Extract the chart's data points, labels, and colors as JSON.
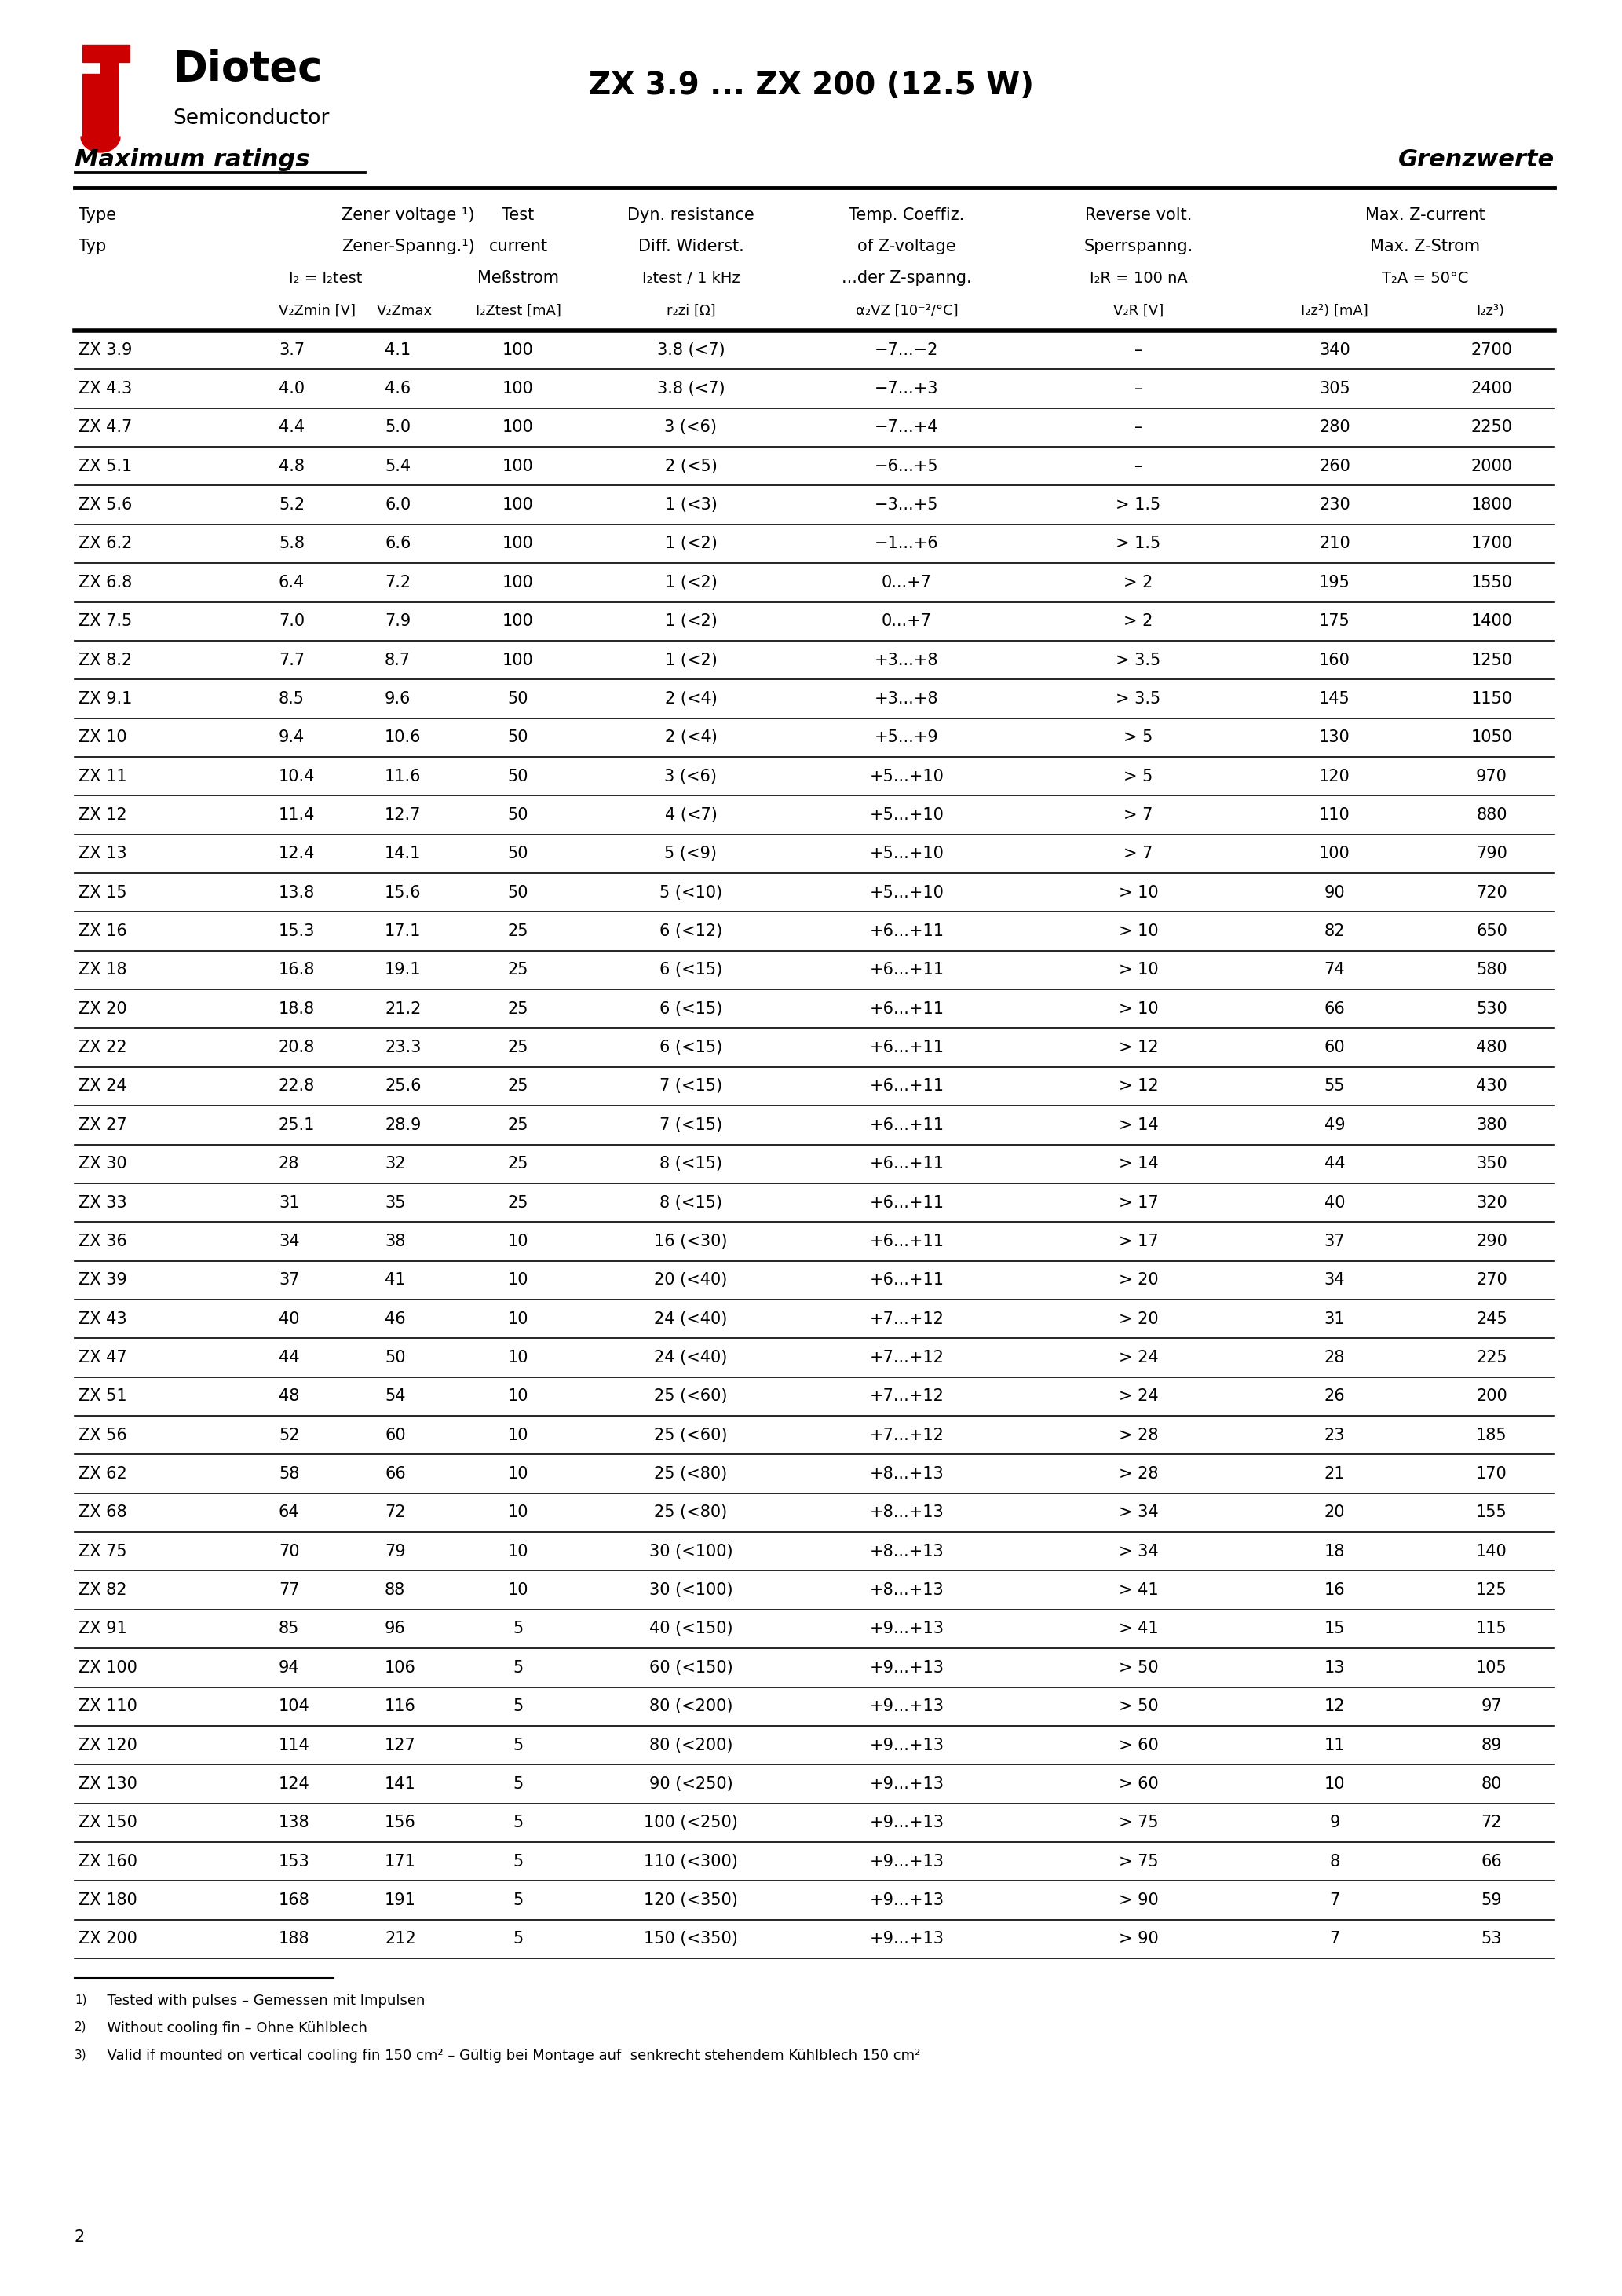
{
  "title": "ZX 3.9 ... ZX 200 (12.5 W)",
  "section_left": "Maximum ratings",
  "section_right": "Grenzwerte",
  "rows": [
    [
      "ZX 3.9",
      "3.7",
      "4.1",
      "100",
      "3.8 (<7)",
      "−7...−2",
      "–",
      "340",
      "2700"
    ],
    [
      "ZX 4.3",
      "4.0",
      "4.6",
      "100",
      "3.8 (<7)",
      "−7...+3",
      "–",
      "305",
      "2400"
    ],
    [
      "ZX 4.7",
      "4.4",
      "5.0",
      "100",
      "3 (<6)",
      "−7...+4",
      "–",
      "280",
      "2250"
    ],
    [
      "ZX 5.1",
      "4.8",
      "5.4",
      "100",
      "2 (<5)",
      "−6...+5",
      "–",
      "260",
      "2000"
    ],
    [
      "ZX 5.6",
      "5.2",
      "6.0",
      "100",
      "1 (<3)",
      "−3...+5",
      "> 1.5",
      "230",
      "1800"
    ],
    [
      "ZX 6.2",
      "5.8",
      "6.6",
      "100",
      "1 (<2)",
      "−1...+6",
      "> 1.5",
      "210",
      "1700"
    ],
    [
      "ZX 6.8",
      "6.4",
      "7.2",
      "100",
      "1 (<2)",
      "0...+7",
      "> 2",
      "195",
      "1550"
    ],
    [
      "ZX 7.5",
      "7.0",
      "7.9",
      "100",
      "1 (<2)",
      "0...+7",
      "> 2",
      "175",
      "1400"
    ],
    [
      "ZX 8.2",
      "7.7",
      "8.7",
      "100",
      "1 (<2)",
      "+3...+8",
      "> 3.5",
      "160",
      "1250"
    ],
    [
      "ZX 9.1",
      "8.5",
      "9.6",
      "50",
      "2 (<4)",
      "+3...+8",
      "> 3.5",
      "145",
      "1150"
    ],
    [
      "ZX 10",
      "9.4",
      "10.6",
      "50",
      "2 (<4)",
      "+5...+9",
      "> 5",
      "130",
      "1050"
    ],
    [
      "ZX 11",
      "10.4",
      "11.6",
      "50",
      "3 (<6)",
      "+5...+10",
      "> 5",
      "120",
      "970"
    ],
    [
      "ZX 12",
      "11.4",
      "12.7",
      "50",
      "4 (<7)",
      "+5...+10",
      "> 7",
      "110",
      "880"
    ],
    [
      "ZX 13",
      "12.4",
      "14.1",
      "50",
      "5 (<9)",
      "+5...+10",
      "> 7",
      "100",
      "790"
    ],
    [
      "ZX 15",
      "13.8",
      "15.6",
      "50",
      "5 (<10)",
      "+5...+10",
      "> 10",
      "90",
      "720"
    ],
    [
      "ZX 16",
      "15.3",
      "17.1",
      "25",
      "6 (<12)",
      "+6...+11",
      "> 10",
      "82",
      "650"
    ],
    [
      "ZX 18",
      "16.8",
      "19.1",
      "25",
      "6 (<15)",
      "+6...+11",
      "> 10",
      "74",
      "580"
    ],
    [
      "ZX 20",
      "18.8",
      "21.2",
      "25",
      "6 (<15)",
      "+6...+11",
      "> 10",
      "66",
      "530"
    ],
    [
      "ZX 22",
      "20.8",
      "23.3",
      "25",
      "6 (<15)",
      "+6...+11",
      "> 12",
      "60",
      "480"
    ],
    [
      "ZX 24",
      "22.8",
      "25.6",
      "25",
      "7 (<15)",
      "+6...+11",
      "> 12",
      "55",
      "430"
    ],
    [
      "ZX 27",
      "25.1",
      "28.9",
      "25",
      "7 (<15)",
      "+6...+11",
      "> 14",
      "49",
      "380"
    ],
    [
      "ZX 30",
      "28",
      "32",
      "25",
      "8 (<15)",
      "+6...+11",
      "> 14",
      "44",
      "350"
    ],
    [
      "ZX 33",
      "31",
      "35",
      "25",
      "8 (<15)",
      "+6...+11",
      "> 17",
      "40",
      "320"
    ],
    [
      "ZX 36",
      "34",
      "38",
      "10",
      "16 (<30)",
      "+6...+11",
      "> 17",
      "37",
      "290"
    ],
    [
      "ZX 39",
      "37",
      "41",
      "10",
      "20 (<40)",
      "+6...+11",
      "> 20",
      "34",
      "270"
    ],
    [
      "ZX 43",
      "40",
      "46",
      "10",
      "24 (<40)",
      "+7...+12",
      "> 20",
      "31",
      "245"
    ],
    [
      "ZX 47",
      "44",
      "50",
      "10",
      "24 (<40)",
      "+7...+12",
      "> 24",
      "28",
      "225"
    ],
    [
      "ZX 51",
      "48",
      "54",
      "10",
      "25 (<60)",
      "+7...+12",
      "> 24",
      "26",
      "200"
    ],
    [
      "ZX 56",
      "52",
      "60",
      "10",
      "25 (<60)",
      "+7...+12",
      "> 28",
      "23",
      "185"
    ],
    [
      "ZX 62",
      "58",
      "66",
      "10",
      "25 (<80)",
      "+8...+13",
      "> 28",
      "21",
      "170"
    ],
    [
      "ZX 68",
      "64",
      "72",
      "10",
      "25 (<80)",
      "+8...+13",
      "> 34",
      "20",
      "155"
    ],
    [
      "ZX 75",
      "70",
      "79",
      "10",
      "30 (<100)",
      "+8...+13",
      "> 34",
      "18",
      "140"
    ],
    [
      "ZX 82",
      "77",
      "88",
      "10",
      "30 (<100)",
      "+8...+13",
      "> 41",
      "16",
      "125"
    ],
    [
      "ZX 91",
      "85",
      "96",
      "5",
      "40 (<150)",
      "+9...+13",
      "> 41",
      "15",
      "115"
    ],
    [
      "ZX 100",
      "94",
      "106",
      "5",
      "60 (<150)",
      "+9...+13",
      "> 50",
      "13",
      "105"
    ],
    [
      "ZX 110",
      "104",
      "116",
      "5",
      "80 (<200)",
      "+9...+13",
      "> 50",
      "12",
      "97"
    ],
    [
      "ZX 120",
      "114",
      "127",
      "5",
      "80 (<200)",
      "+9...+13",
      "> 60",
      "11",
      "89"
    ],
    [
      "ZX 130",
      "124",
      "141",
      "5",
      "90 (<250)",
      "+9...+13",
      "> 60",
      "10",
      "80"
    ],
    [
      "ZX 150",
      "138",
      "156",
      "5",
      "100 (<250)",
      "+9...+13",
      "> 75",
      "9",
      "72"
    ],
    [
      "ZX 160",
      "153",
      "171",
      "5",
      "110 (<300)",
      "+9...+13",
      "> 75",
      "8",
      "66"
    ],
    [
      "ZX 180",
      "168",
      "191",
      "5",
      "120 (<350)",
      "+9...+13",
      "> 90",
      "7",
      "59"
    ],
    [
      "ZX 200",
      "188",
      "212",
      "5",
      "150 (<350)",
      "+9...+13",
      "> 90",
      "7",
      "53"
    ]
  ],
  "footnotes": [
    "1)  Tested with pulses – Gemessen mit Impulsen",
    "2)  Without cooling fin – Ohne Kühlblech",
    "3)  Valid if mounted on vertical cooling fin 150 cm² – Gültig bei Montage auf  senkrecht stehendem Kühlblech 150 cm²"
  ],
  "page_number": "2",
  "bg_color": "#ffffff",
  "text_color": "#000000",
  "red_color": "#cc0000",
  "line_color": "#000000"
}
